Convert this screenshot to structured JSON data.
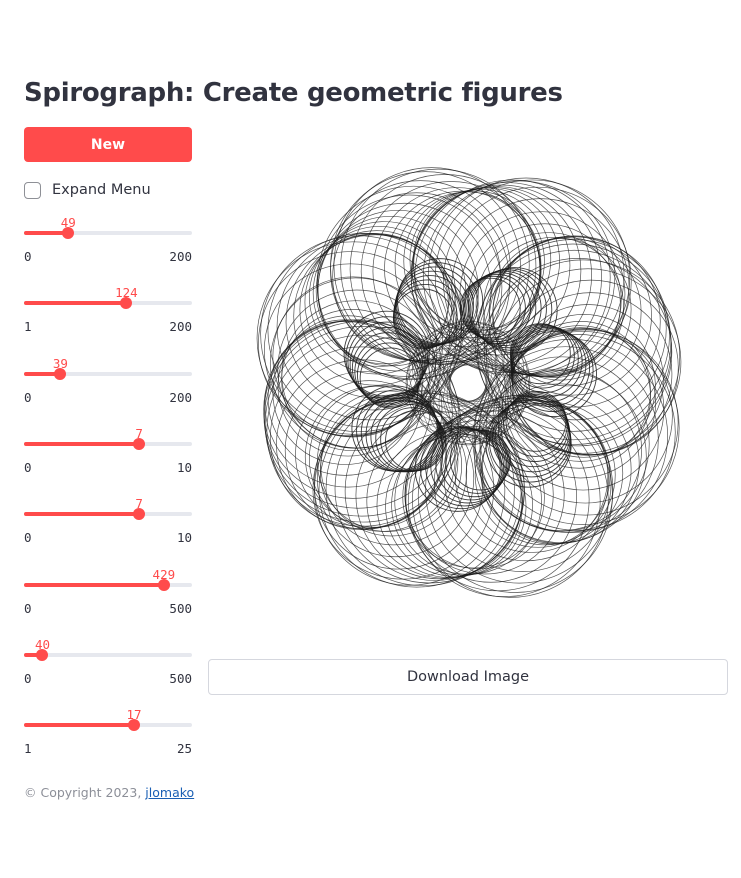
{
  "page": {
    "title": "Spirograph: Create geometric figures"
  },
  "controls": {
    "new_label": "New",
    "expand_menu_label": "Expand Menu",
    "expand_menu_checked": false
  },
  "sliders": [
    {
      "value": 49,
      "min": 0,
      "max": 200
    },
    {
      "value": 124,
      "min": 1,
      "max": 200
    },
    {
      "value": 39,
      "min": 0,
      "max": 200
    },
    {
      "value": 7,
      "min": 0,
      "max": 10
    },
    {
      "value": 7,
      "min": 0,
      "max": 10
    },
    {
      "value": 429,
      "min": 0,
      "max": 500
    },
    {
      "value": 40,
      "min": 0,
      "max": 500
    },
    {
      "value": 17,
      "min": 1,
      "max": 25
    }
  ],
  "figure": {
    "download_label": "Download Image",
    "stroke_color": "#1a1a1a",
    "lobes": 7,
    "rings_per_lobe": 18
  },
  "footer": {
    "copyright_prefix": "© Copyright 2023, ",
    "author_link": "jlomako"
  },
  "colors": {
    "accent": "#ff4b4b",
    "track": "#e6e8ee",
    "text": "#31333f",
    "muted": "#8c8f98",
    "link": "#1a5fb4"
  }
}
